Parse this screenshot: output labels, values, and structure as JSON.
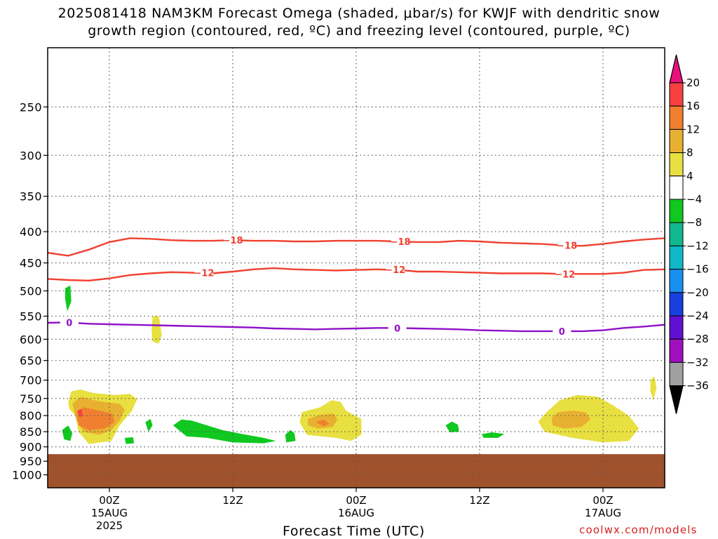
{
  "title_line1": "2025081418 NAM3KM Forecast Omega (shaded, μbar/s) for KWJF with dendritic snow",
  "title_line2": "growth region (contoured, red, ºC) and freezing level (contoured, purple, ºC)",
  "xlabel": "Forecast Time (UTC)",
  "credit": "coolwx.com/models",
  "colors": {
    "dgz_contour": "#f04030",
    "freezing_contour": "#9010c8",
    "terrain": "#a0522d",
    "gridline": "#555555"
  },
  "chart_data": {
    "type": "heatmap",
    "x_unit": "hours since 2025081418 UTC",
    "x_range": [
      0,
      60
    ],
    "x_ticks": [
      {
        "x": 6,
        "label": [
          "00Z",
          "15AUG",
          "2025"
        ]
      },
      {
        "x": 18,
        "label": [
          "12Z"
        ]
      },
      {
        "x": 30,
        "label": [
          "00Z",
          "16AUG"
        ]
      },
      {
        "x": 42,
        "label": [
          "12Z"
        ]
      },
      {
        "x": 54,
        "label": [
          "00Z",
          "17AUG"
        ]
      }
    ],
    "y_unit": "hPa",
    "y_range": [
      200,
      1050
    ],
    "y_scale": "log",
    "y_ticks": [
      250,
      300,
      350,
      400,
      450,
      500,
      550,
      600,
      650,
      700,
      750,
      800,
      850,
      900,
      950,
      1000
    ],
    "grid": true,
    "colorbar": {
      "ticks": [
        "20",
        "16",
        "12",
        "8",
        "4",
        "−4",
        "−8",
        "−12",
        "−16",
        "−20",
        "−24",
        "−28",
        "−32",
        "−36"
      ],
      "colors": [
        "#e8107a",
        "#f84040",
        "#f08030",
        "#e8b030",
        "#e8e040",
        "#ffffff",
        "#10c820",
        "#10b890",
        "#10b8c8",
        "#1890f0",
        "#1840e0",
        "#6010d0",
        "#a010c0",
        "#a0a0a0",
        "#000000"
      ]
    },
    "contours": [
      {
        "level": "-18",
        "points": [
          [
            0,
            433
          ],
          [
            2,
            438
          ],
          [
            4,
            428
          ],
          [
            6,
            416
          ],
          [
            8,
            410
          ],
          [
            10,
            411
          ],
          [
            12,
            413
          ],
          [
            14,
            414
          ],
          [
            16,
            414
          ],
          [
            18,
            413
          ],
          [
            20,
            414
          ],
          [
            22,
            414
          ],
          [
            24,
            415
          ],
          [
            26,
            415
          ],
          [
            28,
            414
          ],
          [
            30,
            414
          ],
          [
            32,
            414
          ],
          [
            34,
            415
          ],
          [
            36,
            416
          ],
          [
            38,
            416
          ],
          [
            40,
            414
          ],
          [
            42,
            415
          ],
          [
            44,
            417
          ],
          [
            46,
            418
          ],
          [
            48,
            419
          ],
          [
            50,
            421
          ],
          [
            52,
            422
          ],
          [
            54,
            419
          ],
          [
            56,
            415
          ],
          [
            58,
            412
          ],
          [
            60,
            410
          ]
        ]
      },
      {
        "level": "-12",
        "points": [
          [
            0,
            478
          ],
          [
            2,
            480
          ],
          [
            4,
            481
          ],
          [
            6,
            477
          ],
          [
            8,
            471
          ],
          [
            10,
            468
          ],
          [
            12,
            466
          ],
          [
            14,
            467
          ],
          [
            16,
            468
          ],
          [
            18,
            465
          ],
          [
            20,
            461
          ],
          [
            22,
            459
          ],
          [
            24,
            461
          ],
          [
            26,
            462
          ],
          [
            28,
            463
          ],
          [
            30,
            462
          ],
          [
            32,
            461
          ],
          [
            34,
            462
          ],
          [
            36,
            465
          ],
          [
            38,
            465
          ],
          [
            40,
            466
          ],
          [
            42,
            467
          ],
          [
            44,
            468
          ],
          [
            46,
            468
          ],
          [
            48,
            468
          ],
          [
            50,
            469
          ],
          [
            52,
            469
          ],
          [
            54,
            469
          ],
          [
            56,
            467
          ],
          [
            58,
            462
          ],
          [
            60,
            461
          ]
        ]
      },
      {
        "level": "0",
        "points": [
          [
            0,
            564
          ],
          [
            2,
            563
          ],
          [
            4,
            566
          ],
          [
            6,
            567
          ],
          [
            8,
            568
          ],
          [
            10,
            569
          ],
          [
            12,
            570
          ],
          [
            14,
            571
          ],
          [
            16,
            572
          ],
          [
            18,
            573
          ],
          [
            20,
            574
          ],
          [
            22,
            576
          ],
          [
            24,
            577
          ],
          [
            26,
            578
          ],
          [
            28,
            577
          ],
          [
            30,
            576
          ],
          [
            32,
            575
          ],
          [
            34,
            575
          ],
          [
            36,
            576
          ],
          [
            38,
            577
          ],
          [
            40,
            578
          ],
          [
            42,
            580
          ],
          [
            44,
            581
          ],
          [
            46,
            582
          ],
          [
            48,
            582
          ],
          [
            50,
            582
          ],
          [
            52,
            582
          ],
          [
            54,
            580
          ],
          [
            56,
            575
          ],
          [
            58,
            572
          ],
          [
            60,
            568
          ]
        ]
      }
    ],
    "contour_labels": [
      {
        "level": "-18",
        "x": 18,
        "y": 413
      },
      {
        "level": "-18",
        "x": 34.3,
        "y": 415
      },
      {
        "level": "-18",
        "x": 50.5,
        "y": 421
      },
      {
        "level": "-12",
        "x": 15.2,
        "y": 467
      },
      {
        "level": "-12",
        "x": 33.8,
        "y": 461
      },
      {
        "level": "-12",
        "x": 50.3,
        "y": 469
      },
      {
        "level": "0",
        "x": 2.1,
        "y": 563
      },
      {
        "level": "0",
        "x": 34,
        "y": 575
      },
      {
        "level": "0",
        "x": 50,
        "y": 582
      }
    ],
    "terrain_top_hPa": 925,
    "omega_regions": [
      {
        "value": "4",
        "points": [
          [
            2,
            760
          ],
          [
            2.3,
            730
          ],
          [
            3.2,
            725
          ],
          [
            4.5,
            735
          ],
          [
            6.5,
            740
          ],
          [
            8.0,
            737
          ],
          [
            8.7,
            752
          ],
          [
            8.2,
            785
          ],
          [
            7.0,
            830
          ],
          [
            6.2,
            880
          ],
          [
            4.0,
            890
          ],
          [
            3.0,
            850
          ],
          [
            2.7,
            800
          ],
          [
            2.1,
            780
          ]
        ]
      },
      {
        "value": "8",
        "points": [
          [
            2.4,
            765
          ],
          [
            3.2,
            745
          ],
          [
            4.5,
            755
          ],
          [
            5.5,
            760
          ],
          [
            7.0,
            765
          ],
          [
            7.5,
            782
          ],
          [
            7.0,
            815
          ],
          [
            6.2,
            845
          ],
          [
            5.0,
            860
          ],
          [
            3.5,
            850
          ],
          [
            2.8,
            815
          ]
        ]
      },
      {
        "value": "12",
        "points": [
          [
            2.8,
            790
          ],
          [
            3.5,
            775
          ],
          [
            5.0,
            785
          ],
          [
            6.3,
            795
          ],
          [
            6.5,
            820
          ],
          [
            5.5,
            840
          ],
          [
            4.0,
            845
          ],
          [
            3.0,
            830
          ]
        ]
      },
      {
        "value": "16",
        "points": [
          [
            2.9,
            785
          ],
          [
            3.3,
            780
          ],
          [
            3.4,
            800
          ],
          [
            3.1,
            805
          ]
        ]
      },
      {
        "value": "4",
        "points": [
          [
            10.2,
            550
          ],
          [
            10.8,
            550
          ],
          [
            11.1,
            590
          ],
          [
            10.8,
            610
          ],
          [
            10.2,
            605
          ],
          [
            10.1,
            580
          ]
        ]
      },
      {
        "value": "4",
        "points": [
          [
            24.7,
            790
          ],
          [
            26.5,
            775
          ],
          [
            27.6,
            755
          ],
          [
            28.5,
            760
          ],
          [
            29.0,
            785
          ],
          [
            30.5,
            810
          ],
          [
            30.5,
            860
          ],
          [
            29.5,
            880
          ],
          [
            28.0,
            870
          ],
          [
            25.2,
            860
          ],
          [
            24.5,
            820
          ]
        ]
      },
      {
        "value": "8",
        "points": [
          [
            25.3,
            810
          ],
          [
            26.5,
            798
          ],
          [
            27.8,
            793
          ],
          [
            28.2,
            812
          ],
          [
            27.7,
            835
          ],
          [
            26.3,
            840
          ],
          [
            25.3,
            830
          ]
        ]
      },
      {
        "value": "12",
        "points": [
          [
            26.1,
            820
          ],
          [
            26.8,
            812
          ],
          [
            27.4,
            825
          ],
          [
            26.8,
            833
          ]
        ]
      },
      {
        "value": "4",
        "points": [
          [
            47.7,
            818
          ],
          [
            48.5,
            790
          ],
          [
            49.8,
            755
          ],
          [
            51.5,
            740
          ],
          [
            53.5,
            745
          ],
          [
            55.0,
            770
          ],
          [
            56.5,
            800
          ],
          [
            57.5,
            840
          ],
          [
            56.5,
            880
          ],
          [
            54.0,
            885
          ],
          [
            51.0,
            870
          ],
          [
            48.3,
            850
          ]
        ]
      },
      {
        "value": "8",
        "points": [
          [
            49.0,
            808
          ],
          [
            49.6,
            790
          ],
          [
            51.0,
            785
          ],
          [
            52.3,
            790
          ],
          [
            52.8,
            812
          ],
          [
            51.9,
            835
          ],
          [
            50.2,
            840
          ],
          [
            49.1,
            830
          ]
        ]
      },
      {
        "value": "4",
        "points": [
          [
            58.6,
            700
          ],
          [
            59.0,
            690
          ],
          [
            59.2,
            720
          ],
          [
            58.9,
            755
          ],
          [
            58.6,
            730
          ]
        ]
      },
      {
        "value": "-4",
        "points": [
          [
            1.7,
            495
          ],
          [
            2.2,
            490
          ],
          [
            2.3,
            520
          ],
          [
            1.9,
            540
          ],
          [
            1.7,
            515
          ]
        ]
      },
      {
        "value": "-4",
        "points": [
          [
            1.4,
            845
          ],
          [
            2.0,
            830
          ],
          [
            2.4,
            855
          ],
          [
            2.2,
            880
          ],
          [
            1.6,
            875
          ]
        ]
      },
      {
        "value": "-4",
        "points": [
          [
            9.5,
            820
          ],
          [
            10.0,
            810
          ],
          [
            10.2,
            830
          ],
          [
            9.8,
            850
          ]
        ]
      },
      {
        "value": "-4",
        "points": [
          [
            7.5,
            870
          ],
          [
            8.3,
            868
          ],
          [
            8.4,
            888
          ],
          [
            7.6,
            890
          ]
        ]
      },
      {
        "value": "-4",
        "points": [
          [
            12.2,
            830
          ],
          [
            13.0,
            812
          ],
          [
            14.0,
            815
          ],
          [
            15.5,
            830
          ],
          [
            17.0,
            845
          ],
          [
            19.0,
            858
          ],
          [
            21.0,
            870
          ],
          [
            22.2,
            880
          ],
          [
            21.0,
            888
          ],
          [
            18.0,
            885
          ],
          [
            15.5,
            870
          ],
          [
            13.5,
            865
          ]
        ]
      },
      {
        "value": "-4",
        "points": [
          [
            23.1,
            860
          ],
          [
            23.6,
            845
          ],
          [
            24.0,
            855
          ],
          [
            24.1,
            880
          ],
          [
            23.2,
            885
          ]
        ]
      },
      {
        "value": "-4",
        "points": [
          [
            38.7,
            830
          ],
          [
            39.3,
            818
          ],
          [
            39.9,
            828
          ],
          [
            40.0,
            850
          ],
          [
            39.1,
            852
          ]
        ]
      },
      {
        "value": "-4",
        "points": [
          [
            42.2,
            858
          ],
          [
            43.2,
            852
          ],
          [
            44.4,
            857
          ],
          [
            43.8,
            870
          ],
          [
            42.4,
            870
          ]
        ]
      }
    ]
  }
}
